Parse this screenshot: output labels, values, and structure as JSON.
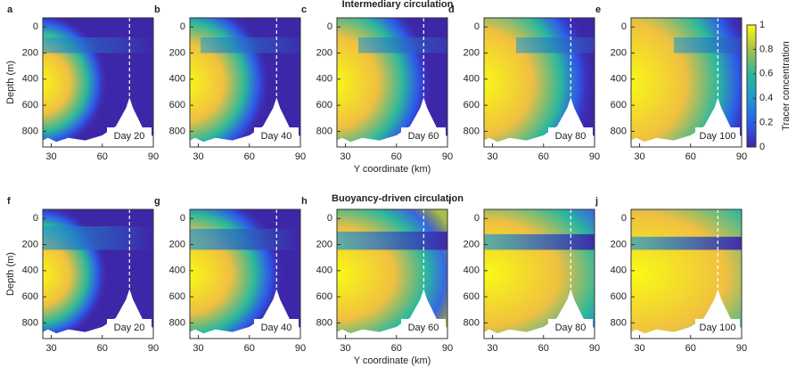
{
  "row_titles": [
    "Intermediary circulation",
    "Buoyancy-driven circulation"
  ],
  "colorbar": {
    "label": "Tracer concentration",
    "lim": [
      0,
      1
    ],
    "ticks": [
      0,
      0.2,
      0.4,
      0.6,
      0.8,
      1
    ]
  },
  "chart_data": [
    {
      "type": "heatmap",
      "panel": "a",
      "annotation": "Day 20",
      "ylabel": "Depth (m)",
      "xlim": [
        25,
        90
      ],
      "xticks": [
        30,
        60,
        90
      ],
      "ylim": [
        -70,
        920
      ],
      "yticks": [
        0,
        200,
        400,
        600,
        800
      ],
      "y_reversed": true
    },
    {
      "type": "heatmap",
      "panel": "b",
      "annotation": "Day 40",
      "xlim": [
        25,
        90
      ],
      "xticks": [
        30,
        60,
        90
      ],
      "ylim": [
        -70,
        920
      ],
      "yticks": [
        0,
        200,
        400,
        600,
        800
      ],
      "y_reversed": true
    },
    {
      "type": "heatmap",
      "panel": "c",
      "annotation": "Day 60",
      "xlabel": "Y coordinate (km)",
      "xlim": [
        25,
        90
      ],
      "xticks": [
        30,
        60,
        90
      ],
      "ylim": [
        -70,
        920
      ],
      "yticks": [
        0,
        200,
        400,
        600,
        800
      ],
      "y_reversed": true
    },
    {
      "type": "heatmap",
      "panel": "d",
      "annotation": "Day 80",
      "xlim": [
        25,
        90
      ],
      "xticks": [
        30,
        60,
        90
      ],
      "ylim": [
        -70,
        920
      ],
      "yticks": [
        0,
        200,
        400,
        600,
        800
      ],
      "y_reversed": true
    },
    {
      "type": "heatmap",
      "panel": "e",
      "annotation": "Day 100",
      "xlim": [
        25,
        90
      ],
      "xticks": [
        30,
        60,
        90
      ],
      "ylim": [
        -70,
        920
      ],
      "yticks": [
        0,
        200,
        400,
        600,
        800
      ],
      "y_reversed": true
    },
    {
      "type": "heatmap",
      "panel": "f",
      "annotation": "Day 20",
      "ylabel": "Depth (m)",
      "xlim": [
        25,
        90
      ],
      "xticks": [
        30,
        60,
        90
      ],
      "ylim": [
        -70,
        920
      ],
      "yticks": [
        0,
        200,
        400,
        600,
        800
      ],
      "y_reversed": true
    },
    {
      "type": "heatmap",
      "panel": "g",
      "annotation": "Day 40",
      "xlim": [
        25,
        90
      ],
      "xticks": [
        30,
        60,
        90
      ],
      "ylim": [
        -70,
        920
      ],
      "yticks": [
        0,
        200,
        400,
        600,
        800
      ],
      "y_reversed": true
    },
    {
      "type": "heatmap",
      "panel": "h",
      "annotation": "Day 60",
      "xlabel": "Y coordinate (km)",
      "xlim": [
        25,
        90
      ],
      "xticks": [
        30,
        60,
        90
      ],
      "ylim": [
        -70,
        920
      ],
      "yticks": [
        0,
        200,
        400,
        600,
        800
      ],
      "y_reversed": true
    },
    {
      "type": "heatmap",
      "panel": "i",
      "annotation": "Day 80",
      "xlim": [
        25,
        90
      ],
      "xticks": [
        30,
        60,
        90
      ],
      "ylim": [
        -70,
        920
      ],
      "yticks": [
        0,
        200,
        400,
        600,
        800
      ],
      "y_reversed": true
    },
    {
      "type": "heatmap",
      "panel": "j",
      "annotation": "Day 100",
      "xlim": [
        25,
        90
      ],
      "xticks": [
        30,
        60,
        90
      ],
      "ylim": [
        -70,
        920
      ],
      "yticks": [
        0,
        200,
        400,
        600,
        800
      ],
      "y_reversed": true
    }
  ]
}
